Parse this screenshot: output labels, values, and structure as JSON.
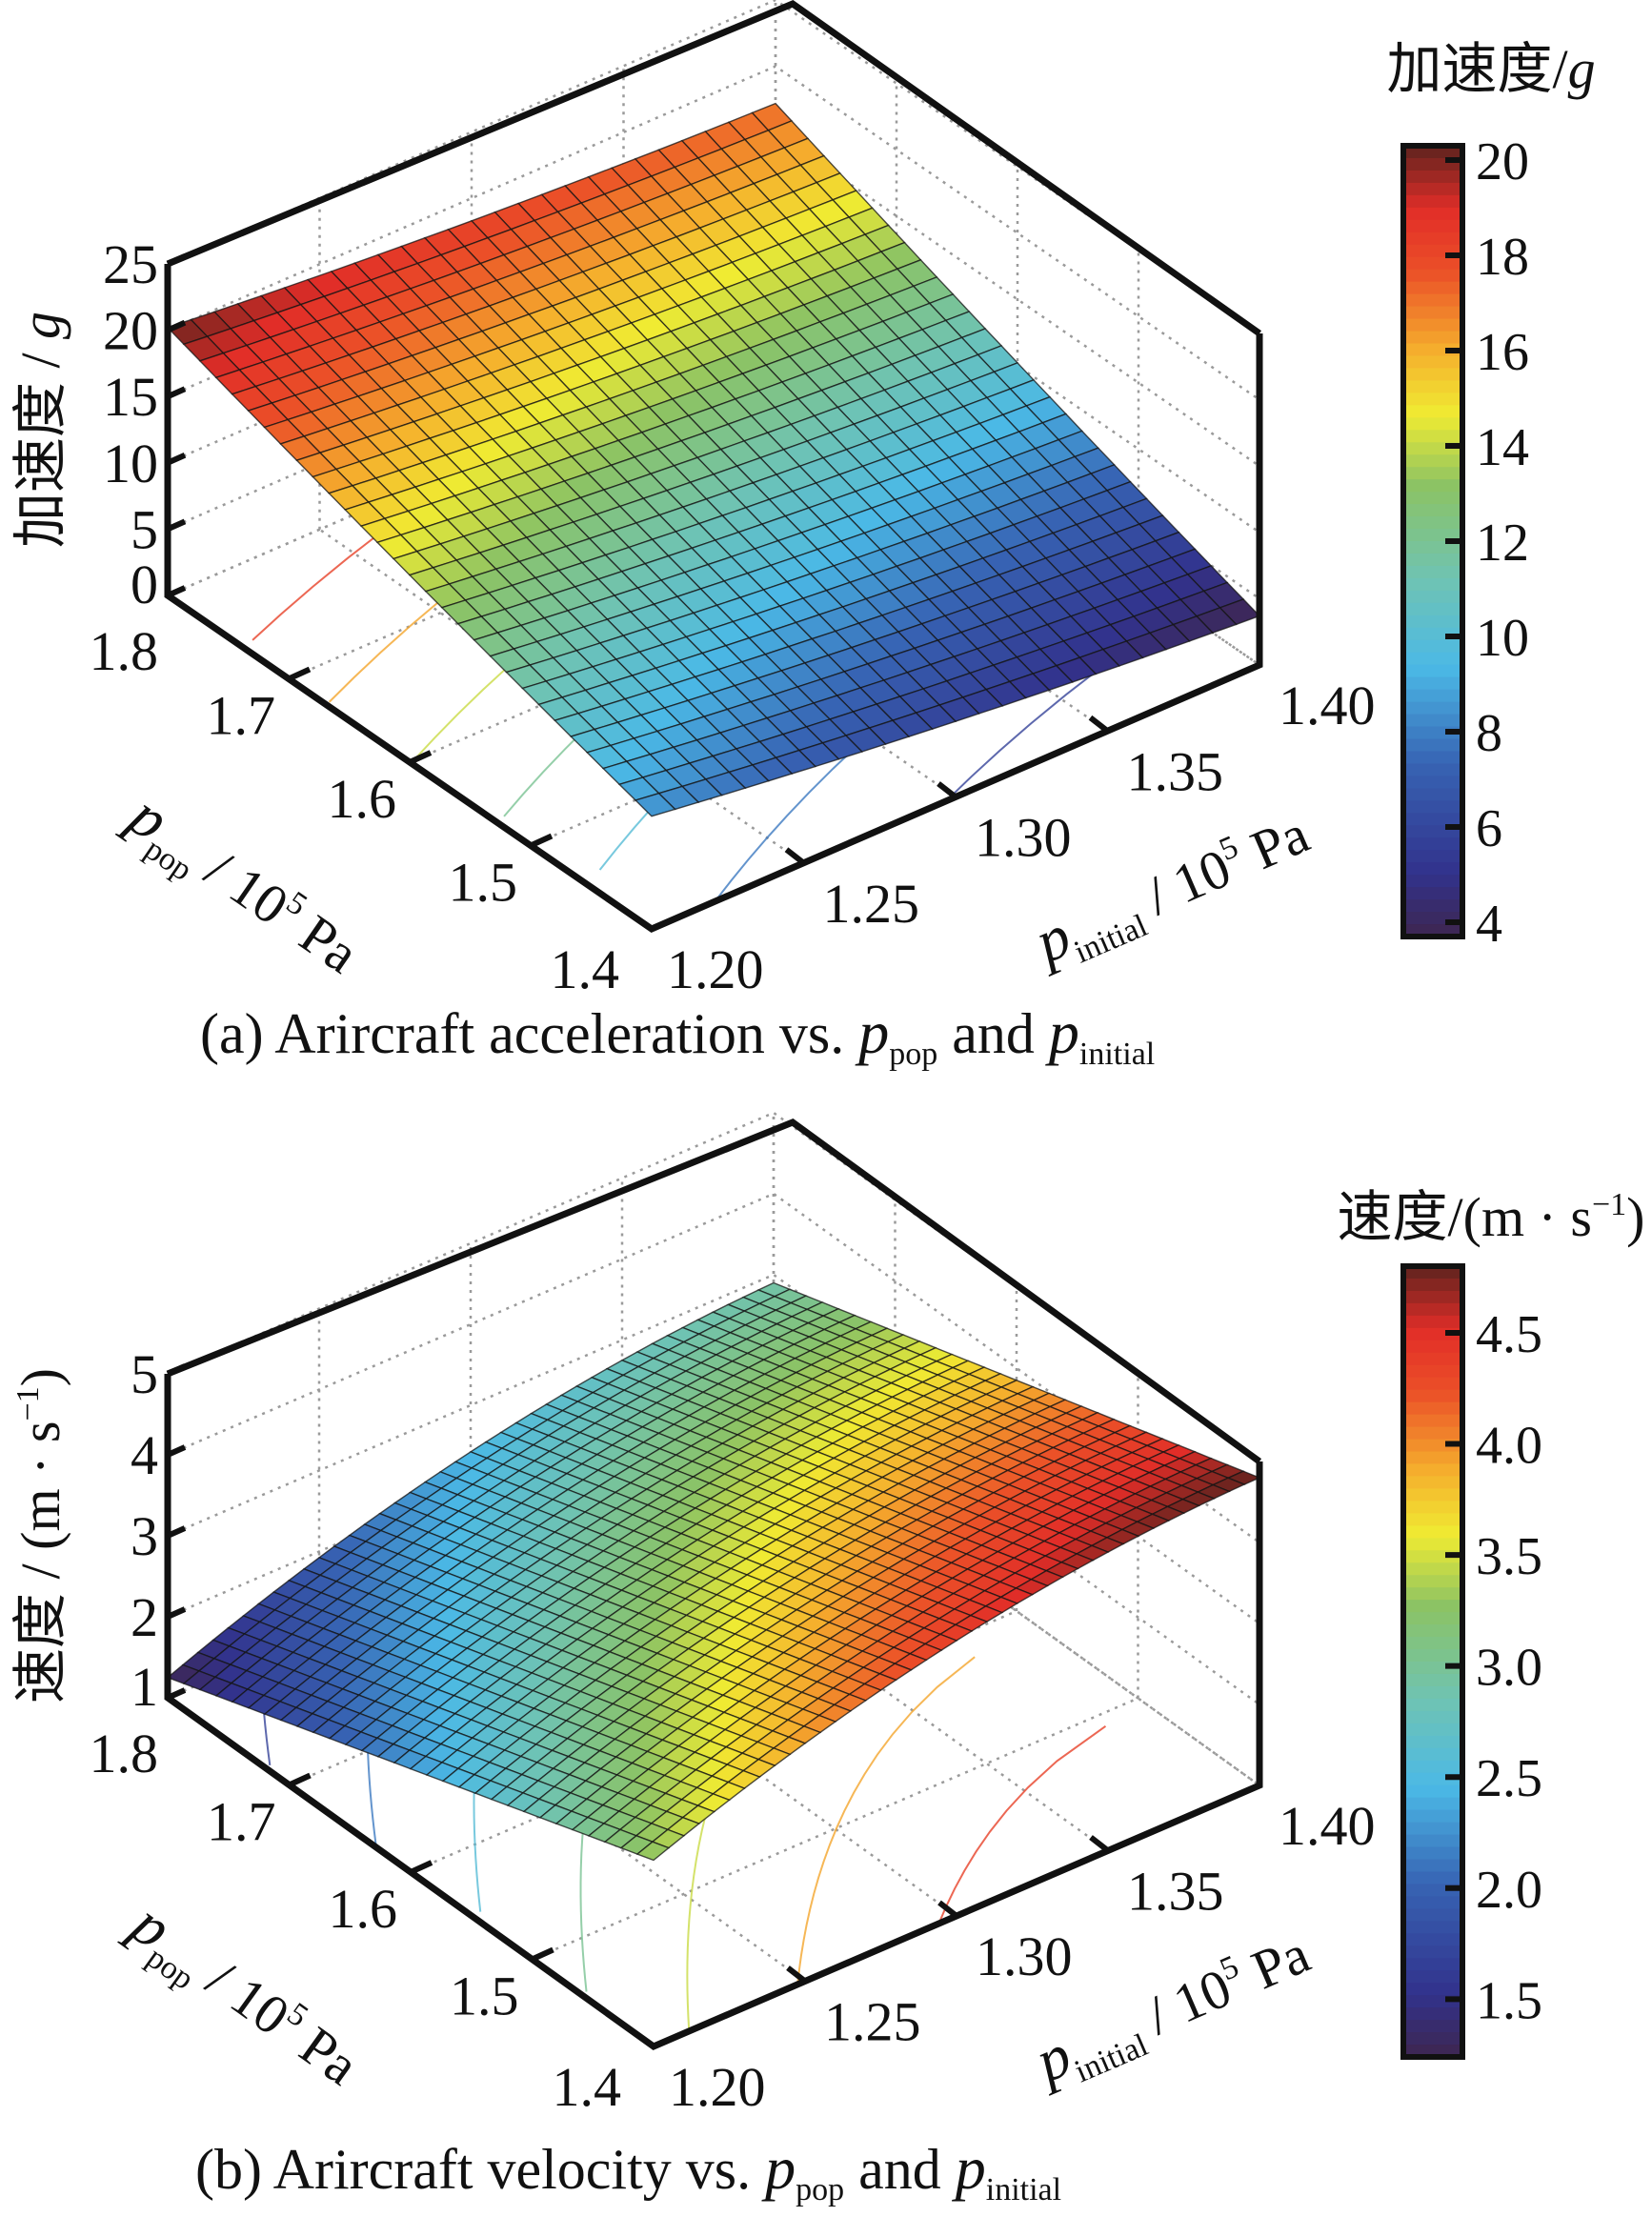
{
  "chart_data": [
    {
      "type": "surface3d",
      "panel": "a",
      "caption": {
        "prefix": "(a) Arircraft acceleration vs. ",
        "var1": "p",
        "var1_sub": "pop",
        "mid": " and ",
        "var2": "p",
        "var2_sub": "initial"
      },
      "zlabel": "加速度 / g",
      "zlabel_cn": "加速度 / ",
      "zlabel_unit": "g",
      "xlabel": {
        "sym": "p",
        "sub": "pop",
        "unit": " / 10",
        "exp": "5",
        "tail": " Pa"
      },
      "ylabel": {
        "sym": "p",
        "sub": "initial",
        "unit": " / 10",
        "exp": "5",
        "tail": " Pa"
      },
      "x_name": "p_pop (10^5 Pa)",
      "y_name": "p_initial (10^5 Pa)",
      "xlim": [
        1.4,
        1.8
      ],
      "ylim": [
        1.2,
        1.4
      ],
      "zlim": [
        0,
        25
      ],
      "x_ticks": [
        "1.4",
        "1.5",
        "1.6",
        "1.7",
        "1.8"
      ],
      "y_ticks": [
        "1.20",
        "1.25",
        "1.30",
        "1.35",
        "1.40"
      ],
      "z_ticks": [
        "0",
        "5",
        "10",
        "15",
        "20",
        "25"
      ],
      "corner_values": {
        "ppop_1.8_pinit_1.20": 20.2,
        "ppop_1.8_pinit_1.40": 17.2,
        "ppop_1.4_pinit_1.20": 8.5,
        "ppop_1.4_pinit_1.40": 3.7
      },
      "curvature": -0.8,
      "colorbar": {
        "title_cn": "加速度/",
        "title_unit": "g",
        "range": [
          3.7,
          20.3
        ],
        "ticks": [
          "4",
          "6",
          "8",
          "10",
          "12",
          "14",
          "16",
          "18",
          "20"
        ]
      },
      "grid": true,
      "contour_projection": true,
      "colormap": "jet"
    },
    {
      "type": "surface3d",
      "panel": "b",
      "caption": {
        "prefix": "(b) Arircraft velocity vs. ",
        "var1": "p",
        "var1_sub": "pop",
        "mid": " and ",
        "var2": "p",
        "var2_sub": "initial"
      },
      "zlabel": "速度 / (m · s⁻¹)",
      "zlabel_cn": "速度 / (m · s",
      "zlabel_exp": "−1",
      "zlabel_close": ")",
      "xlabel": {
        "sym": "p",
        "sub": "pop",
        "unit": " / 10",
        "exp": "5",
        "tail": " Pa"
      },
      "ylabel": {
        "sym": "p",
        "sub": "initial",
        "unit": " / 10",
        "exp": "5",
        "tail": " Pa"
      },
      "x_name": "p_pop (10^5 Pa)",
      "y_name": "p_initial (10^5 Pa)",
      "xlim": [
        1.4,
        1.8
      ],
      "ylim": [
        1.2,
        1.4
      ],
      "zlim": [
        1,
        5
      ],
      "x_ticks": [
        "1.4",
        "1.5",
        "1.6",
        "1.7",
        "1.8"
      ],
      "y_ticks": [
        "1.20",
        "1.25",
        "1.30",
        "1.35",
        "1.40"
      ],
      "z_ticks": [
        "1",
        "2",
        "3",
        "4",
        "5"
      ],
      "corner_values": {
        "ppop_1.8_pinit_1.20": 1.25,
        "ppop_1.8_pinit_1.40": 2.9,
        "ppop_1.4_pinit_1.20": 3.3,
        "ppop_1.4_pinit_1.40": 4.8
      },
      "curvature": 0.35,
      "colorbar": {
        "title_cn": "速度/(m · s",
        "title_exp": "−1",
        "title_close": ")",
        "range": [
          1.24,
          4.8
        ],
        "ticks": [
          "1.5",
          "2.0",
          "2.5",
          "3.0",
          "3.5",
          "4.0",
          "4.5"
        ]
      },
      "grid": true,
      "contour_projection": true,
      "colormap": "jet"
    }
  ]
}
